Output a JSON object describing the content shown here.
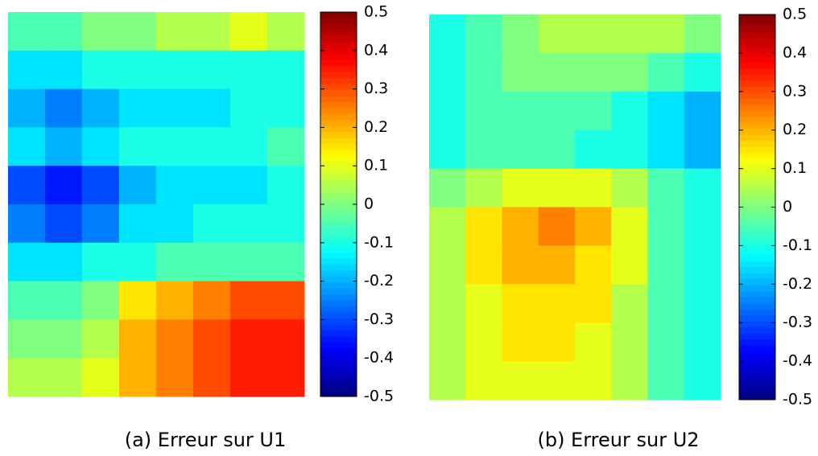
{
  "chart_data": [
    {
      "type": "heatmap",
      "caption": "(a) Erreur sur U1",
      "colormap": "jet",
      "clim": [
        -0.5,
        0.5
      ],
      "cticks": [
        0.5,
        0.4,
        0.3,
        0.2,
        0.1,
        0,
        -0.1,
        -0.2,
        -0.3,
        -0.4,
        -0.5
      ],
      "values": [
        [
          -0.05,
          -0.05,
          0,
          0,
          0.05,
          0.05,
          0.1,
          0.05
        ],
        [
          -0.15,
          -0.15,
          -0.1,
          -0.1,
          -0.1,
          -0.1,
          -0.1,
          -0.1
        ],
        [
          -0.2,
          -0.25,
          -0.2,
          -0.15,
          -0.15,
          -0.15,
          -0.1,
          -0.1
        ],
        [
          -0.15,
          -0.2,
          -0.15,
          -0.1,
          -0.1,
          -0.1,
          -0.1,
          -0.05
        ],
        [
          -0.3,
          -0.35,
          -0.3,
          -0.2,
          -0.15,
          -0.15,
          -0.15,
          -0.1
        ],
        [
          -0.25,
          -0.3,
          -0.25,
          -0.15,
          -0.15,
          -0.1,
          -0.1,
          -0.1
        ],
        [
          -0.15,
          -0.15,
          -0.1,
          -0.1,
          -0.05,
          -0.05,
          -0.05,
          -0.05
        ],
        [
          -0.05,
          -0.05,
          0,
          0.15,
          0.2,
          0.25,
          0.3,
          0.3
        ],
        [
          0,
          0,
          0.05,
          0.2,
          0.25,
          0.3,
          0.35,
          0.35
        ],
        [
          0.05,
          0.05,
          0.1,
          0.2,
          0.25,
          0.3,
          0.35,
          0.35
        ]
      ]
    },
    {
      "type": "heatmap",
      "caption": "(b) Erreur sur U2",
      "colormap": "jet",
      "clim": [
        -0.5,
        0.5
      ],
      "cticks": [
        0.5,
        0.4,
        0.3,
        0.2,
        0.1,
        0,
        -0.1,
        -0.2,
        -0.3,
        -0.4,
        -0.5
      ],
      "values": [
        [
          -0.1,
          -0.05,
          0,
          0.05,
          0.05,
          0.05,
          0.05,
          0
        ],
        [
          -0.1,
          -0.05,
          0,
          0,
          0,
          0,
          -0.05,
          -0.1
        ],
        [
          -0.1,
          -0.05,
          -0.05,
          -0.05,
          -0.05,
          -0.1,
          -0.15,
          -0.2
        ],
        [
          -0.1,
          -0.05,
          -0.05,
          -0.05,
          -0.1,
          -0.1,
          -0.15,
          -0.2
        ],
        [
          0,
          0.05,
          0.1,
          0.1,
          0.1,
          0.05,
          -0.05,
          -0.1
        ],
        [
          0.05,
          0.15,
          0.2,
          0.25,
          0.2,
          0.1,
          -0.05,
          -0.1
        ],
        [
          0.05,
          0.15,
          0.2,
          0.2,
          0.15,
          0.1,
          -0.05,
          -0.1
        ],
        [
          0.05,
          0.1,
          0.15,
          0.15,
          0.15,
          0.05,
          -0.05,
          -0.1
        ],
        [
          0.05,
          0.1,
          0.15,
          0.15,
          0.1,
          0.05,
          -0.05,
          -0.1
        ],
        [
          0.05,
          0.1,
          0.1,
          0.1,
          0.1,
          0.05,
          -0.05,
          -0.1
        ]
      ]
    }
  ]
}
